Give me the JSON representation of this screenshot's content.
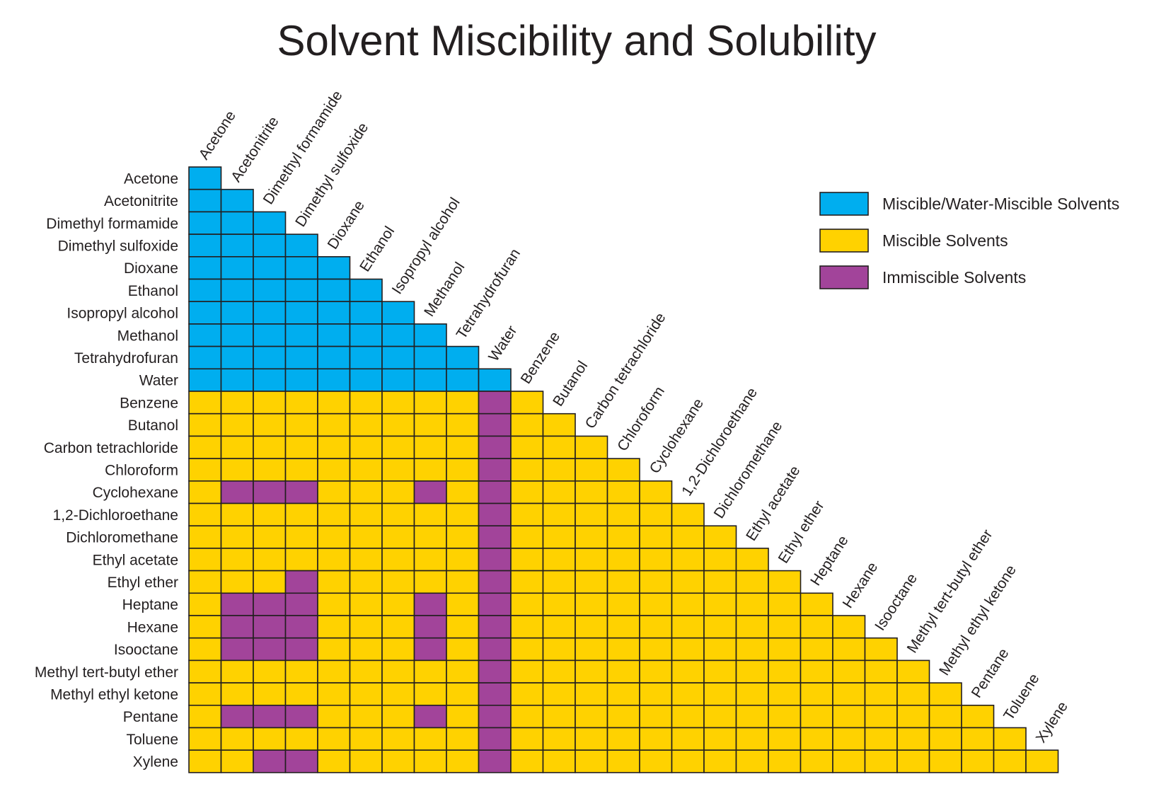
{
  "chart_data": {
    "type": "heatmap",
    "title": "Solvent Miscibility and Solubility",
    "rows": [
      "Acetone",
      "Acetonitrite",
      "Dimethyl formamide",
      "Dimethyl sulfoxide",
      "Dioxane",
      "Ethanol",
      "Isopropyl alcohol",
      "Methanol",
      "Tetrahydrofuran",
      "Water",
      "Benzene",
      "Butanol",
      "Carbon tetrachloride",
      "Chloroform",
      "Cyclohexane",
      "1,2-Dichloroethane",
      "Dichloromethane",
      "Ethyl acetate",
      "Ethyl ether",
      "Heptane",
      "Hexane",
      "Isooctane",
      "Methyl tert-butyl ether",
      "Methyl ethyl ketone",
      "Pentane",
      "Toluene",
      "Xylene"
    ],
    "columns": [
      "Acetone",
      "Acetonitrite",
      "Dimethyl formamide",
      "Dimethyl sulfoxide",
      "Dioxane",
      "Ethanol",
      "Isopropyl alcohol",
      "Methanol",
      "Tetrahydrofuran",
      "Water",
      "Benzene",
      "Butanol",
      "Carbon tetrachloride",
      "Chloroform",
      "Cyclohexane",
      "1,2-Dichloroethane",
      "Dichloromethane",
      "Ethyl acetate",
      "Ethyl ether",
      "Heptane",
      "Hexane",
      "Isooctane",
      "Methyl tert-butyl ether",
      "Methyl ethyl ketone",
      "Pentane",
      "Toluene",
      "Xylene"
    ],
    "layout": "lower-triangular",
    "categories": {
      "W": {
        "label": "Miscible/Water-Miscible Solvents",
        "color": "#00aeef"
      },
      "M": {
        "label": "Miscible Solvents",
        "color": "#ffd200"
      },
      "I": {
        "label": "Immiscible Solvents",
        "color": "#a2449a"
      }
    },
    "cells": [
      "W",
      "WW",
      "WWW",
      "WWWW",
      "WWWWW",
      "WWWWWW",
      "WWWWWWW",
      "WWWWWWWW",
      "WWWWWWWWW",
      "WWWWWWWWWW",
      "MMMMMMMMMIM",
      "MMMMMMMMMIMM",
      "MMMMMMMMMIMMM",
      "MMMMMMMMMIMMMM",
      "MIIIMMMIMIMMMMM",
      "MMMMMMMMMIMMMMMM",
      "MMMMMMMMMIMMMMMMM",
      "MMMMMMMMMIMMMMMMMM",
      "MMMIMMMMMIMMMMMMMMM",
      "MIIIMMMIMIMMMMMMMMMM",
      "MIIIMMMIMIMMMMMMMMMMM",
      "MIIIMMMIMIMMMMMMMMMMMM",
      "MMMMMMMMMIMMMMMMMMMMMMM",
      "MMMMMMMMMIMMMMMMMMMMMMMM",
      "MIIIMMMIMIMMMMMMMMMMMMMMM",
      "MMMMMMMMMIMMMMMMMMMMMMMMMM",
      "MMIIMMMMMIMMMMMMMMMMMMMMMMM"
    ],
    "legend": {
      "position": "top-right",
      "items": [
        {
          "key": "W",
          "label": "Miscible/Water-Miscible Solvents"
        },
        {
          "key": "M",
          "label": "Miscible Solvents"
        },
        {
          "key": "I",
          "label": "Immiscible Solvents"
        }
      ]
    }
  }
}
